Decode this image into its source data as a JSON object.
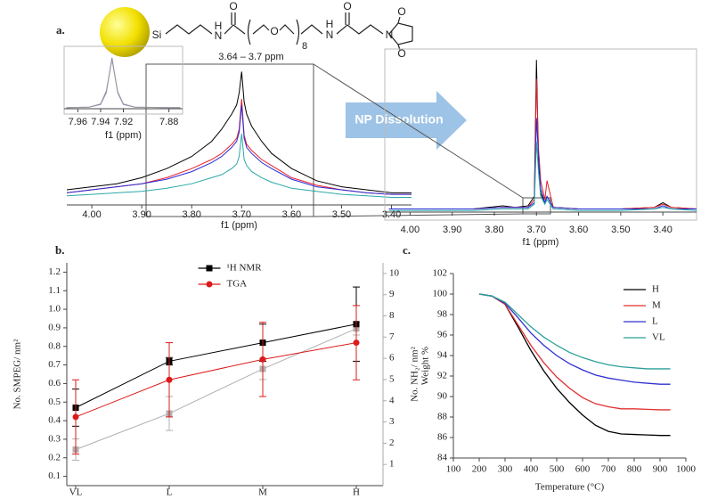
{
  "panel_labels": [
    "a.",
    "b.",
    "c."
  ],
  "molecule": [
    "Si",
    "H",
    "N",
    "O",
    "O",
    "8",
    "H",
    "N",
    "O",
    "N",
    "O",
    "O"
  ],
  "arrow_label": "NP Dissolution",
  "chart_data": [
    {
      "type": "line",
      "x": [
        4.05,
        4.0,
        3.95,
        3.9,
        3.85,
        3.8,
        3.76,
        3.74,
        3.72,
        3.71,
        3.705,
        3.7,
        3.695,
        3.69,
        3.68,
        3.66,
        3.64,
        3.6,
        3.55,
        3.5,
        3.45,
        3.4,
        3.36
      ],
      "xlim": [
        4.05,
        3.36
      ],
      "ylim": [
        0,
        100
      ],
      "xticks": [
        {
          "value": 4,
          "label": "4.00"
        },
        {
          "value": 3.9,
          "label": "3.90"
        },
        {
          "value": 3.8,
          "label": "3.80"
        },
        {
          "value": 3.7,
          "label": "3.70"
        },
        {
          "value": 3.6,
          "label": "3.60"
        },
        {
          "value": 3.5,
          "label": "3.50"
        },
        {
          "value": 3.4,
          "label": "3.40"
        }
      ],
      "xlabel": "f1 (ppm)",
      "annotation": "3.64 – 3.7 ppm",
      "series": [
        {
          "color": "#000000",
          "values": [
            10,
            12,
            14,
            18,
            24,
            32,
            42,
            50,
            60,
            66,
            74,
            88,
            68,
            60,
            52,
            42,
            34,
            24,
            16,
            12,
            10,
            8,
            8
          ]
        },
        {
          "color": "#e8202a",
          "values": [
            8,
            10,
            12,
            14,
            18,
            24,
            30,
            34,
            40,
            44,
            50,
            70,
            46,
            40,
            36,
            30,
            26,
            18,
            13,
            10,
            8,
            7,
            7
          ]
        },
        {
          "color": "#2a2ad8",
          "values": [
            8,
            10,
            12,
            14,
            17,
            22,
            28,
            32,
            38,
            42,
            48,
            66,
            44,
            38,
            34,
            28,
            24,
            17,
            12,
            10,
            8,
            7,
            7
          ]
        },
        {
          "color": "#2aa8a8",
          "values": [
            6,
            7,
            8,
            9,
            11,
            14,
            18,
            20,
            24,
            27,
            32,
            47,
            30,
            26,
            22,
            18,
            15,
            11,
            9,
            7,
            6,
            5,
            5
          ]
        }
      ]
    },
    {
      "type": "line",
      "x": [
        7.97,
        7.95,
        7.94,
        7.935,
        7.93,
        7.925,
        7.92,
        7.91,
        7.88,
        7.87
      ],
      "xlim": [
        7.972,
        7.868
      ],
      "ylim": [
        0,
        100
      ],
      "xticks": [
        7.96,
        7.94,
        7.92,
        7.88
      ],
      "xlabel": "f1 (ppm)",
      "series": [
        {
          "color": "#8b6fc0",
          "values": [
            2,
            3,
            8,
            30,
            95,
            30,
            8,
            3,
            2,
            2
          ]
        },
        {
          "color": "#9a9a9a",
          "values": [
            2,
            3,
            9,
            33,
            92,
            32,
            9,
            3,
            2,
            2
          ]
        }
      ]
    },
    {
      "type": "line",
      "x": [
        4.05,
        3.95,
        3.85,
        3.78,
        3.75,
        3.72,
        3.705,
        3.7,
        3.695,
        3.69,
        3.68,
        3.675,
        3.66,
        3.6,
        3.5,
        3.42,
        3.4,
        3.38,
        3.32
      ],
      "xlim": [
        4.06,
        3.32
      ],
      "ylim": [
        0,
        100
      ],
      "xticks": [
        {
          "value": 4,
          "label": "4.00"
        },
        {
          "value": 3.9,
          "label": "3.90"
        },
        {
          "value": 3.8,
          "label": "3.80"
        },
        {
          "value": 3.7,
          "label": "3.70"
        },
        {
          "value": 3.6,
          "label": "3.60"
        },
        {
          "value": 3.5,
          "label": "3.50"
        },
        {
          "value": 3.4,
          "label": "3.40"
        }
      ],
      "xlabel": "f1 (ppm)",
      "series": [
        {
          "color": "#000000",
          "values": [
            2,
            2,
            2,
            4,
            3,
            4,
            10,
            97,
            30,
            12,
            6,
            10,
            3,
            2,
            2,
            3,
            6,
            3,
            2
          ]
        },
        {
          "color": "#e8202a",
          "values": [
            2,
            2,
            2,
            3,
            3,
            3,
            8,
            85,
            40,
            20,
            8,
            20,
            3,
            2,
            2,
            3,
            5,
            3,
            2
          ]
        },
        {
          "color": "#2a2ad8",
          "values": [
            2,
            2,
            2,
            3,
            3,
            3,
            6,
            60,
            35,
            15,
            6,
            10,
            3,
            2,
            2,
            2,
            4,
            2,
            2
          ]
        },
        {
          "color": "#2aa8a8",
          "values": [
            1,
            1,
            1,
            2,
            2,
            2,
            5,
            45,
            25,
            10,
            5,
            8,
            2,
            1,
            1,
            2,
            3,
            2,
            1
          ]
        }
      ]
    },
    {
      "type": "line",
      "categories": [
        "VL",
        "L",
        "M",
        "H"
      ],
      "ylim": [
        0.05,
        1.25
      ],
      "yticks": [
        0.1,
        0.2,
        0.3,
        0.4,
        0.5,
        0.6,
        0.7,
        0.8,
        0.9,
        {
          "value": 1,
          "label": "1.0"
        },
        1.1,
        1.2
      ],
      "y2lim": [
        0,
        10.5
      ],
      "y2ticks": [
        1,
        2,
        3,
        4,
        5,
        6,
        7,
        8,
        9,
        10
      ],
      "ylabel": "No. SMPEG/ nm²",
      "y2label": "No. NH₂/ nm²",
      "legend": "upper center",
      "series": [
        {
          "color": "#b0b0b0",
          "marker": "square",
          "axis": "y2",
          "values": [
            1.7,
            3.4,
            5.5,
            7.4
          ],
          "errors": [
            0.5,
            0.8,
            0.5,
            0.3
          ]
        },
        {
          "name": "¹H NMR",
          "color": "#000000",
          "marker": "square",
          "values": [
            0.47,
            0.72,
            0.82,
            0.92
          ],
          "errors": [
            0.1,
            0.02,
            0.1,
            0.2
          ]
        },
        {
          "name": "TGA",
          "color": "#dd1a1a",
          "marker": "circle",
          "values": [
            0.42,
            0.62,
            0.73,
            0.82
          ],
          "errors": [
            0.2,
            0.2,
            0.2,
            0.2
          ]
        }
      ]
    },
    {
      "type": "line",
      "x": [
        200,
        250,
        300,
        350,
        400,
        450,
        500,
        550,
        600,
        650,
        700,
        750,
        800,
        850,
        900,
        940
      ],
      "xlim": [
        100,
        1000
      ],
      "ylim": [
        84,
        102
      ],
      "xticks": [
        100,
        200,
        300,
        400,
        500,
        600,
        700,
        800,
        900,
        1000
      ],
      "yticks": [
        84,
        86,
        88,
        90,
        92,
        94,
        96,
        98,
        100,
        102
      ],
      "xlabel": "Temperature (°C)",
      "ylabel": "Weight %",
      "legend": "upper right",
      "series": [
        {
          "name": "H",
          "color": "#000000",
          "values": [
            100,
            99.8,
            99.0,
            96.8,
            94.5,
            92.5,
            90.8,
            89.4,
            88.2,
            87.2,
            86.6,
            86.35,
            86.3,
            86.25,
            86.2,
            86.2
          ]
        },
        {
          "name": "M",
          "color": "#e03030",
          "values": [
            100,
            99.8,
            99.0,
            97.0,
            95.0,
            93.3,
            91.9,
            90.8,
            89.9,
            89.3,
            89.0,
            88.8,
            88.8,
            88.75,
            88.7,
            88.7
          ]
        },
        {
          "name": "L",
          "color": "#3030d0",
          "values": [
            100,
            99.8,
            99.1,
            97.7,
            96.2,
            95.0,
            94.0,
            93.2,
            92.6,
            92.1,
            91.8,
            91.6,
            91.4,
            91.3,
            91.2,
            91.2
          ]
        },
        {
          "name": "VL",
          "color": "#2aa198",
          "values": [
            100,
            99.8,
            99.2,
            98.0,
            96.8,
            95.8,
            95.0,
            94.3,
            93.8,
            93.4,
            93.1,
            92.9,
            92.8,
            92.7,
            92.7,
            92.7
          ]
        }
      ]
    }
  ]
}
